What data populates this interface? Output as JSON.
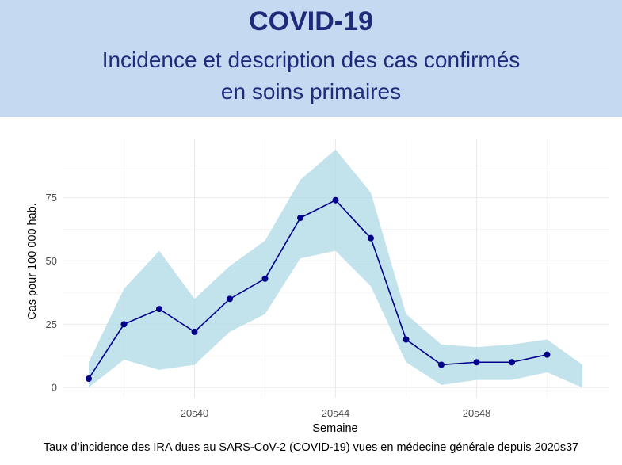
{
  "header": {
    "title": "COVID-19",
    "subtitle_line1": "Incidence et description des cas confirmés",
    "subtitle_line2": "en soins primaires",
    "background_color": "#c5d9f1",
    "text_color": "#1f2a7a"
  },
  "caption": "Taux d’incidence des IRA dues au SARS-CoV-2 (COVID-19) vues en médecine générale depuis 2020s37",
  "chart_data": {
    "type": "line",
    "xlabel": "Semaine",
    "ylabel": "Cas pour 100 000 hab.",
    "weeks": [
      "20s37",
      "20s38",
      "20s39",
      "20s40",
      "20s41",
      "20s42",
      "20s43",
      "20s44",
      "20s45",
      "20s46",
      "20s47",
      "20s48",
      "20s49",
      "20s50",
      "20s51"
    ],
    "x_tick_labels": [
      "20s40",
      "20s44",
      "20s48"
    ],
    "y_ticks": [
      0,
      25,
      50,
      75
    ],
    "ylim": [
      -4,
      98
    ],
    "series": [
      {
        "values": [
          3.5,
          25,
          31,
          22,
          35,
          43,
          67,
          74,
          59,
          19,
          9,
          10,
          10,
          13,
          null
        ],
        "color": "#00008b"
      }
    ],
    "band": {
      "lower": [
        0,
        11,
        7,
        9,
        22,
        29,
        51,
        54,
        40,
        10,
        1,
        3,
        3,
        6,
        0
      ],
      "upper": [
        10,
        39,
        54,
        35,
        48,
        58,
        82,
        94,
        77,
        29,
        17,
        16,
        17,
        19,
        9
      ],
      "color": "#add8e6"
    },
    "grid": true
  }
}
